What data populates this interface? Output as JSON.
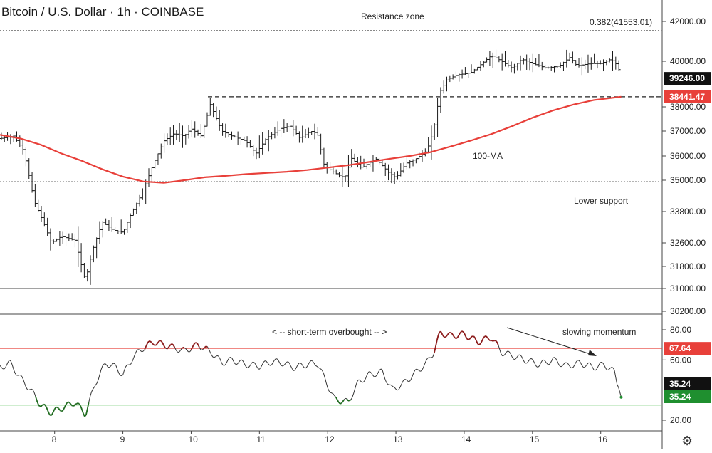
{
  "title": "Bitcoin / U.S. Dollar · 1h · COINBASE",
  "colors": {
    "ma": "#e8403a",
    "candle": "#1a1a1a",
    "rsi_line": "#333333",
    "overbought": "#8b1a1a",
    "oversold": "#1f6b1f",
    "rsi_high_line": "#e8403a",
    "rsi_low_line": "#7fcf7f",
    "price_badge": "#111111",
    "ma_badge": "#e8403a",
    "rsi_badge": "#111111",
    "rsi_low_badge": "#1f8f2f"
  },
  "chart_data": [
    {
      "type": "candlestick",
      "title": "Bitcoin / U.S. Dollar · 1h · COINBASE",
      "x_ticks": [
        "8",
        "9",
        "10",
        "11",
        "12",
        "13",
        "14",
        "15",
        "16"
      ],
      "y_ticks": [
        "42000.00",
        "40000.00",
        "38000.00",
        "37000.00",
        "36000.00",
        "35000.00",
        "33800.00",
        "32600.00",
        "31800.00",
        "31000.00",
        "30200.00"
      ],
      "y_tick_values": [
        42000,
        40000,
        38000,
        37000,
        36000,
        35000,
        33800,
        32600,
        31800,
        31000,
        30200
      ],
      "x_range": [
        7.2,
        16.9
      ],
      "price_path": [
        [
          7.2,
          36700
        ],
        [
          7.4,
          36800
        ],
        [
          7.55,
          36200
        ],
        [
          7.7,
          34200
        ],
        [
          7.85,
          33300
        ],
        [
          7.95,
          32600
        ],
        [
          8.1,
          32850
        ],
        [
          8.3,
          32700
        ],
        [
          8.45,
          31300
        ],
        [
          8.55,
          32300
        ],
        [
          8.7,
          33400
        ],
        [
          8.85,
          33100
        ],
        [
          9.0,
          33000
        ],
        [
          9.1,
          33600
        ],
        [
          9.3,
          34600
        ],
        [
          9.45,
          35700
        ],
        [
          9.6,
          36600
        ],
        [
          9.75,
          36900
        ],
        [
          9.9,
          36800
        ],
        [
          10.0,
          37100
        ],
        [
          10.15,
          36800
        ],
        [
          10.28,
          38100
        ],
        [
          10.45,
          37000
        ],
        [
          10.6,
          36800
        ],
        [
          10.8,
          36600
        ],
        [
          10.95,
          36100
        ],
        [
          11.1,
          36700
        ],
        [
          11.3,
          37100
        ],
        [
          11.45,
          37200
        ],
        [
          11.6,
          36700
        ],
        [
          11.75,
          37000
        ],
        [
          11.85,
          36900
        ],
        [
          11.95,
          35600
        ],
        [
          12.1,
          35300
        ],
        [
          12.25,
          35100
        ],
        [
          12.35,
          35900
        ],
        [
          12.5,
          35500
        ],
        [
          12.7,
          35900
        ],
        [
          12.9,
          35300
        ],
        [
          13.0,
          35100
        ],
        [
          13.15,
          35700
        ],
        [
          13.3,
          35900
        ],
        [
          13.45,
          36200
        ],
        [
          13.55,
          37000
        ],
        [
          13.65,
          38700
        ],
        [
          13.75,
          39200
        ],
        [
          13.9,
          39400
        ],
        [
          14.1,
          39500
        ],
        [
          14.3,
          40000
        ],
        [
          14.4,
          40300
        ],
        [
          14.55,
          40000
        ],
        [
          14.7,
          39700
        ],
        [
          14.85,
          40100
        ],
        [
          15.0,
          39900
        ],
        [
          15.2,
          39700
        ],
        [
          15.4,
          39800
        ],
        [
          15.55,
          40200
        ],
        [
          15.65,
          39800
        ],
        [
          15.85,
          39900
        ],
        [
          16.0,
          39900
        ],
        [
          16.15,
          40100
        ],
        [
          16.25,
          39800
        ],
        [
          16.3,
          39246
        ]
      ],
      "ma_100": [
        [
          7.2,
          36850
        ],
        [
          7.5,
          36700
        ],
        [
          7.8,
          36450
        ],
        [
          8.1,
          36100
        ],
        [
          8.4,
          35800
        ],
        [
          8.7,
          35450
        ],
        [
          9.0,
          35150
        ],
        [
          9.3,
          34950
        ],
        [
          9.6,
          34900
        ],
        [
          9.9,
          35000
        ],
        [
          10.2,
          35120
        ],
        [
          10.5,
          35180
        ],
        [
          10.8,
          35250
        ],
        [
          11.1,
          35300
        ],
        [
          11.4,
          35350
        ],
        [
          11.7,
          35420
        ],
        [
          12.0,
          35520
        ],
        [
          12.3,
          35620
        ],
        [
          12.6,
          35750
        ],
        [
          12.9,
          35880
        ],
        [
          13.2,
          36000
        ],
        [
          13.5,
          36150
        ],
        [
          13.8,
          36380
        ],
        [
          14.1,
          36620
        ],
        [
          14.4,
          36880
        ],
        [
          14.7,
          37200
        ],
        [
          15.0,
          37550
        ],
        [
          15.3,
          37850
        ],
        [
          15.6,
          38100
        ],
        [
          15.9,
          38300
        ],
        [
          16.3,
          38441.47
        ]
      ],
      "resistance_level": 41553.01,
      "resistance_label": "0.382(41553.01)",
      "breakout_level": 38441.47,
      "support_level": 34950,
      "bottom_line_level": 31000,
      "price_label": "39246.00",
      "ma_label": "38441.47",
      "annotations": {
        "resistance_zone": "Resistance zone",
        "ma_name": "100-MA",
        "lower_support": "Lower support"
      }
    },
    {
      "type": "line",
      "y_ticks": [
        "80.00",
        "60.00",
        "20.00"
      ],
      "y_tick_values": [
        80,
        60,
        20
      ],
      "x_range": [
        7.2,
        16.9
      ],
      "overbought_level": 67.64,
      "oversold_level": 30,
      "overbought_label": "67.64",
      "current_label": "35.24",
      "current_label_2": "35.24",
      "rsi_path": [
        [
          7.2,
          55
        ],
        [
          7.35,
          58
        ],
        [
          7.5,
          48
        ],
        [
          7.65,
          40
        ],
        [
          7.8,
          30
        ],
        [
          7.95,
          25
        ],
        [
          8.1,
          28
        ],
        [
          8.3,
          32
        ],
        [
          8.45,
          24
        ],
        [
          8.6,
          45
        ],
        [
          8.75,
          58
        ],
        [
          8.9,
          55
        ],
        [
          9.0,
          50
        ],
        [
          9.15,
          62
        ],
        [
          9.3,
          68
        ],
        [
          9.45,
          72
        ],
        [
          9.6,
          70
        ],
        [
          9.75,
          68
        ],
        [
          9.9,
          66
        ],
        [
          10.1,
          70
        ],
        [
          10.3,
          65
        ],
        [
          10.45,
          58
        ],
        [
          10.6,
          60
        ],
        [
          10.8,
          57
        ],
        [
          11.0,
          56
        ],
        [
          11.2,
          59
        ],
        [
          11.35,
          58
        ],
        [
          11.5,
          55
        ],
        [
          11.7,
          57
        ],
        [
          11.85,
          58
        ],
        [
          11.95,
          48
        ],
        [
          12.1,
          34
        ],
        [
          12.3,
          32
        ],
        [
          12.45,
          45
        ],
        [
          12.6,
          50
        ],
        [
          12.8,
          52
        ],
        [
          12.95,
          40
        ],
        [
          13.1,
          44
        ],
        [
          13.3,
          52
        ],
        [
          13.45,
          58
        ],
        [
          13.55,
          65
        ],
        [
          13.65,
          78
        ],
        [
          13.8,
          76
        ],
        [
          14.0,
          77
        ],
        [
          14.2,
          72
        ],
        [
          14.4,
          75
        ],
        [
          14.55,
          65
        ],
        [
          14.7,
          63
        ],
        [
          14.9,
          60
        ],
        [
          15.1,
          57
        ],
        [
          15.3,
          60
        ],
        [
          15.5,
          56
        ],
        [
          15.7,
          58
        ],
        [
          15.9,
          55
        ],
        [
          16.05,
          57
        ],
        [
          16.2,
          52
        ],
        [
          16.3,
          35.24
        ]
      ],
      "annotations": {
        "overbought_note": "< --  short-term overbought  -- >",
        "momentum_note": "slowing momentum"
      }
    }
  ],
  "icons": {
    "settings": "gear-icon"
  }
}
